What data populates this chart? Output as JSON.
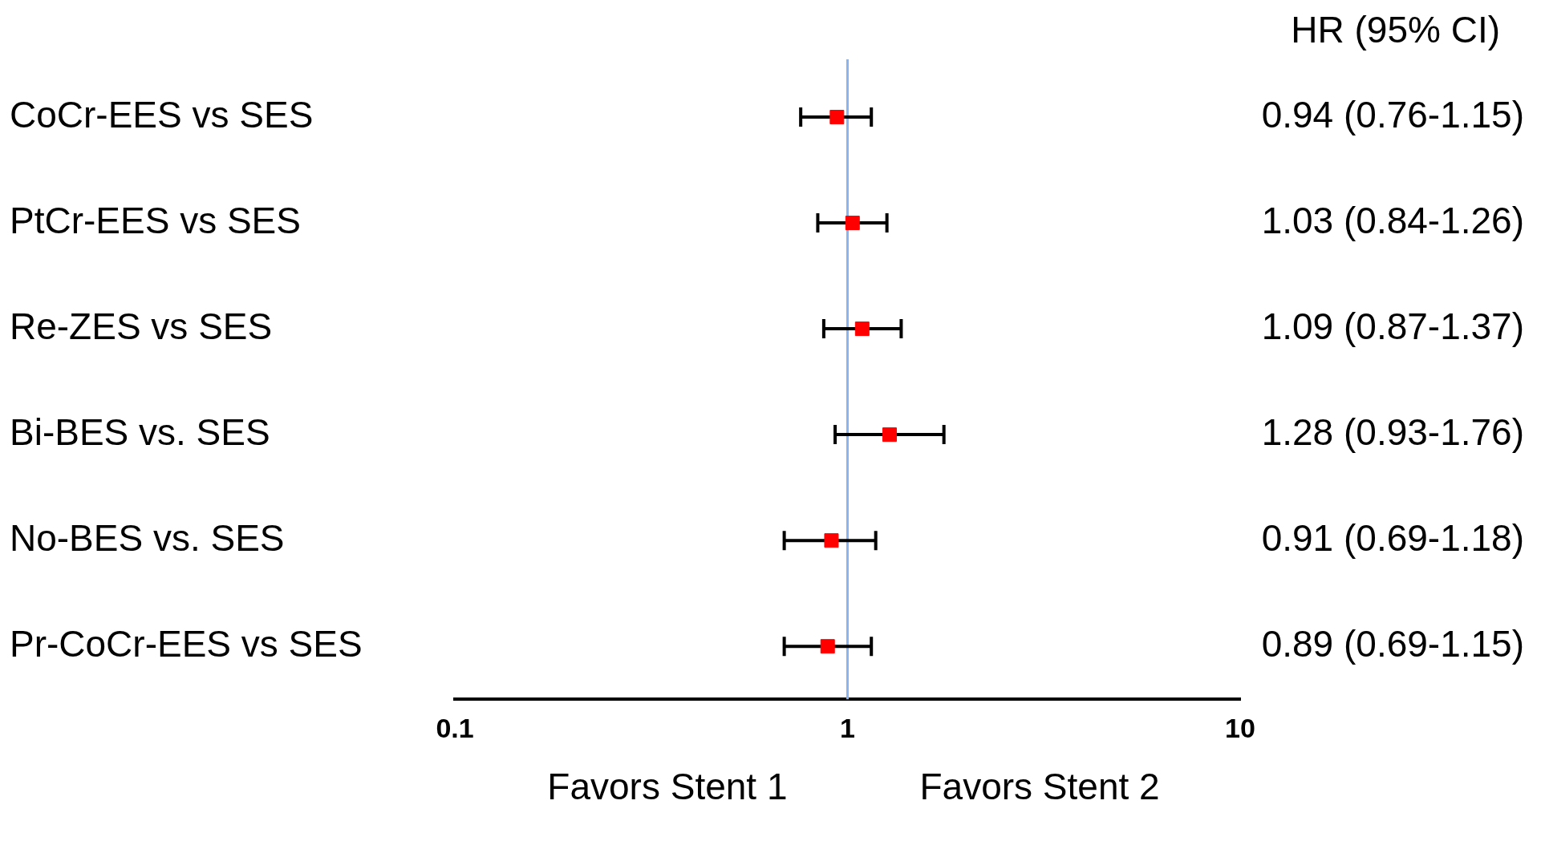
{
  "chart_data": {
    "type": "scatter",
    "orientation": "horizontal",
    "categories": [
      "CoCr-EES vs SES",
      "PtCr-EES vs SES",
      "Re-ZES vs SES",
      "Bi-BES vs. SES",
      "No-BES vs. SES",
      "Pr-CoCr-EES vs SES"
    ],
    "values": [
      0.94,
      1.03,
      1.09,
      1.28,
      0.91,
      0.89
    ],
    "errors": [
      [
        0.76,
        1.15
      ],
      [
        0.84,
        1.26
      ],
      [
        0.87,
        1.37
      ],
      [
        0.93,
        1.76
      ],
      [
        0.69,
        1.18
      ],
      [
        0.69,
        1.15
      ]
    ],
    "value_labels": [
      "0.94 (0.76-1.15)",
      "1.03 (0.84-1.26)",
      "1.09 (0.87-1.37)",
      "1.28 (0.93-1.76)",
      "0.91 (0.69-1.18)",
      "0.89 (0.69-1.15)"
    ],
    "color": "#ff0000",
    "marker": "square",
    "log": "x",
    "xlim": [
      0.1,
      10
    ],
    "xticks": [
      0.1,
      1,
      10
    ],
    "ref_lines": [
      {
        "axis": "x",
        "value": 1,
        "color": "#8ab4f0"
      }
    ],
    "annotations": [
      "HR (95% CI)",
      "Favors Stent 1",
      "Favors Stent 2"
    ],
    "grid": false,
    "legend": false
  }
}
